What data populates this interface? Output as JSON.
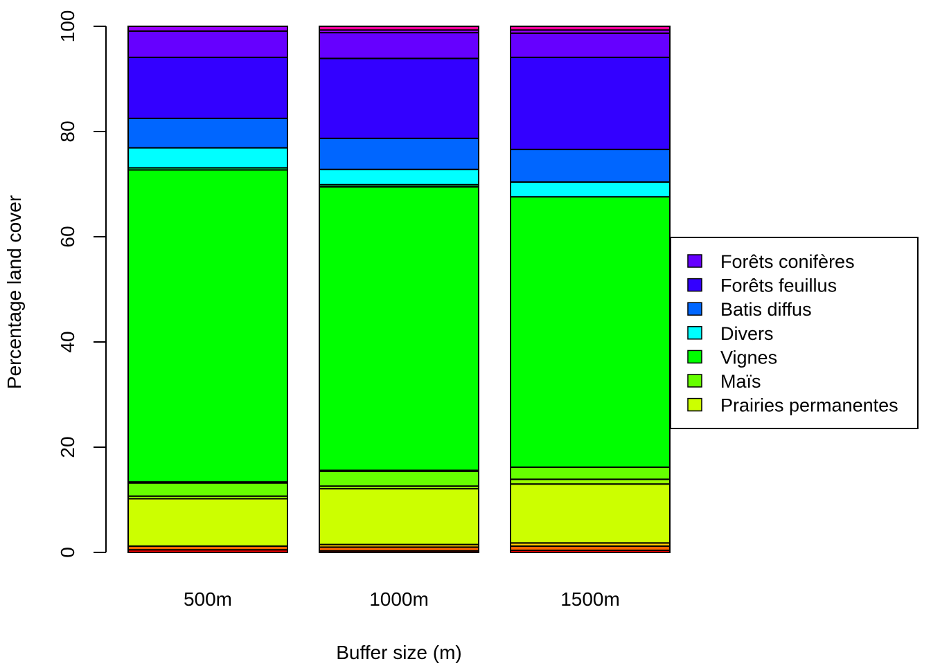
{
  "chart_data": {
    "type": "bar",
    "stacked": true,
    "title": "",
    "xlabel": "Buffer size (m)",
    "ylabel": "Percentage land cover",
    "ylim": [
      0,
      100
    ],
    "yticks": [
      "0",
      "20",
      "40",
      "60",
      "80",
      "100"
    ],
    "categories": [
      "500m",
      "1000m",
      "1500m"
    ],
    "legend_placement": "right",
    "series": [
      {
        "name": "",
        "color": "#FF0000",
        "values": [
          0.5,
          0.3,
          0.4
        ]
      },
      {
        "name": "",
        "color": "#FF6600",
        "values": [
          0.7,
          0.7,
          0.8
        ]
      },
      {
        "name": "",
        "color": "#FFCC00",
        "values": [
          0.0,
          0.5,
          0.6
        ]
      },
      {
        "name": "Prairies permanentes",
        "color": "#CCFF00",
        "values": [
          9.0,
          10.6,
          11.2
        ]
      },
      {
        "name": "",
        "color": "#99FF00",
        "values": [
          0.5,
          0.5,
          0.9
        ]
      },
      {
        "name": "Maïs",
        "color": "#66FF00",
        "values": [
          2.5,
          2.8,
          2.3
        ]
      },
      {
        "name": "",
        "color": "#33FF00",
        "values": [
          0.2,
          0.2,
          0.0
        ]
      },
      {
        "name": "Vignes",
        "color": "#00FF00",
        "values": [
          59.3,
          53.9,
          51.4
        ]
      },
      {
        "name": "",
        "color": "#00FF66",
        "values": [
          0.4,
          0.4,
          0.0
        ]
      },
      {
        "name": "Divers",
        "color": "#00FFFF",
        "values": [
          3.8,
          2.9,
          2.8
        ]
      },
      {
        "name": "Batis diffus",
        "color": "#0066FF",
        "values": [
          5.6,
          5.9,
          6.2
        ]
      },
      {
        "name": "Forêts feuillus",
        "color": "#3300FF",
        "values": [
          11.6,
          15.2,
          17.5
        ]
      },
      {
        "name": "Forêts conifères",
        "color": "#6600FF",
        "values": [
          5.0,
          4.9,
          4.6
        ]
      },
      {
        "name": "",
        "color": "#9900FF",
        "values": [
          0.9,
          0.5,
          0.6
        ]
      },
      {
        "name": "",
        "color": "#FF0099",
        "values": [
          0.0,
          0.7,
          0.7
        ]
      }
    ],
    "legend": [
      "Forêts conifères",
      "Forêts feuillus",
      "Batis diffus",
      "Divers",
      "Vignes",
      "Maïs",
      "Prairies permanentes"
    ]
  }
}
